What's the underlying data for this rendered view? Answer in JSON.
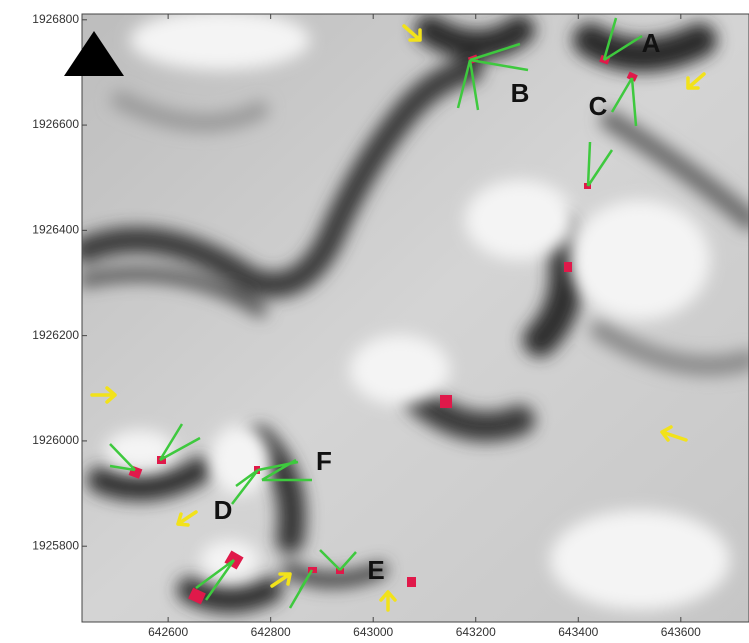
{
  "map": {
    "xlim": [
      642432,
      643733
    ],
    "ylim": [
      1925656,
      1926811
    ],
    "xticks": [
      642600,
      642800,
      643000,
      643200,
      643400,
      643600
    ],
    "yticks": [
      1925800,
      1926000,
      1926200,
      1926400,
      1926600,
      1926800
    ],
    "site_labels": [
      "A",
      "B",
      "C",
      "D",
      "E",
      "F"
    ]
  }
}
